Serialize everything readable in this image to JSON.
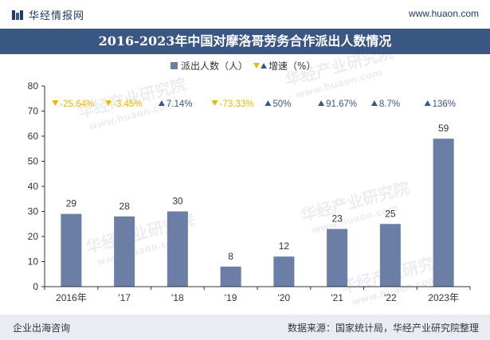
{
  "header": {
    "logo_text": "华经情报网",
    "site_url": "www.huaon.com",
    "title": "2016-2023年中国对摩洛哥劳务合作派出人数情况"
  },
  "footer": {
    "left": "企业出海咨询",
    "right": "数据来源：国家统计局，华经产业研究院整理"
  },
  "watermark": {
    "brand": "华经产业研究院",
    "url": "www.huaon.com"
  },
  "colors": {
    "bar": "#6a7ea6",
    "down": "#f2b600",
    "up": "#3a5683",
    "title_bg": "#3a5683"
  },
  "chart_data": {
    "type": "bar",
    "categories": [
      "2016年",
      "'17",
      "'18",
      "'19",
      "'20",
      "'21",
      "'22",
      "2023年"
    ],
    "series": [
      {
        "name": "派出人数（人）",
        "values": [
          29,
          28,
          30,
          8,
          12,
          23,
          25,
          59
        ]
      }
    ],
    "growth": {
      "name": "增速（%）",
      "labels": [
        "-25.64%",
        "-3.45%",
        "7.14%",
        "-73.33%",
        "50%",
        "91.67%",
        "8.7%",
        "136%"
      ],
      "direction": [
        "down",
        "down",
        "up",
        "down",
        "up",
        "up",
        "up",
        "up"
      ]
    },
    "ylim": [
      0,
      80
    ],
    "yticks": [
      0,
      10,
      20,
      30,
      40,
      50,
      60,
      70,
      80
    ],
    "legend_position": "top-center",
    "grid": false
  }
}
